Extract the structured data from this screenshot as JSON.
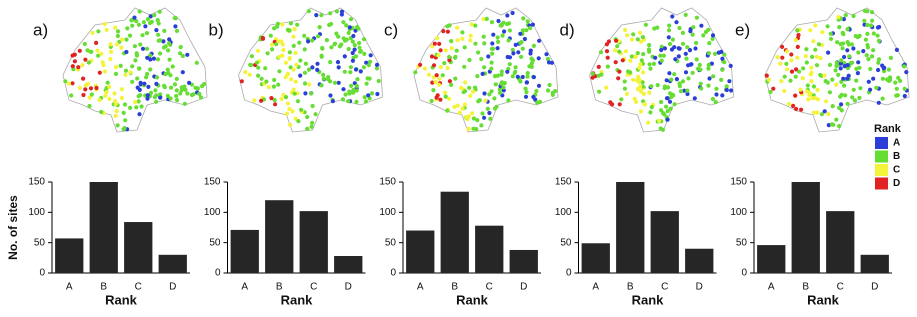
{
  "chart_data": [
    {
      "type": "bar",
      "title": "a)",
      "ylabel": "No. of sites",
      "xlabel": "Rank",
      "categories": [
        "A",
        "B",
        "C",
        "D"
      ],
      "values": [
        57,
        150,
        84,
        30
      ],
      "color": "#262626",
      "ylim": [
        0,
        150
      ],
      "yticks": [
        0,
        50,
        100,
        150
      ]
    },
    {
      "type": "bar",
      "title": "b)",
      "xlabel": "Rank",
      "categories": [
        "A",
        "B",
        "C",
        "D"
      ],
      "values": [
        71,
        120,
        102,
        28
      ],
      "color": "#262626",
      "ylim": [
        0,
        150
      ],
      "yticks": [
        0,
        50,
        100,
        150
      ]
    },
    {
      "type": "bar",
      "title": "c)",
      "xlabel": "Rank",
      "categories": [
        "A",
        "B",
        "C",
        "D"
      ],
      "values": [
        70,
        134,
        78,
        38
      ],
      "color": "#262626",
      "ylim": [
        0,
        150
      ],
      "yticks": [
        0,
        50,
        100,
        150
      ]
    },
    {
      "type": "bar",
      "title": "d)",
      "xlabel": "Rank",
      "categories": [
        "A",
        "B",
        "C",
        "D"
      ],
      "values": [
        49,
        150,
        102,
        40
      ],
      "color": "#262626",
      "ylim": [
        0,
        150
      ],
      "yticks": [
        0,
        50,
        100,
        150
      ]
    },
    {
      "type": "bar",
      "title": "e)",
      "xlabel": "Rank",
      "categories": [
        "A",
        "B",
        "C",
        "D"
      ],
      "values": [
        46,
        150,
        102,
        30
      ],
      "color": "#262626",
      "ylim": [
        0,
        150
      ],
      "yticks": [
        0,
        50,
        100,
        150
      ]
    }
  ],
  "legend": {
    "title": "Rank",
    "items": [
      {
        "name": "A",
        "color": "#2b3fd8"
      },
      {
        "name": "B",
        "color": "#66dd33"
      },
      {
        "name": "C",
        "color": "#f3f33a"
      },
      {
        "name": "D",
        "color": "#e02222"
      }
    ]
  }
}
